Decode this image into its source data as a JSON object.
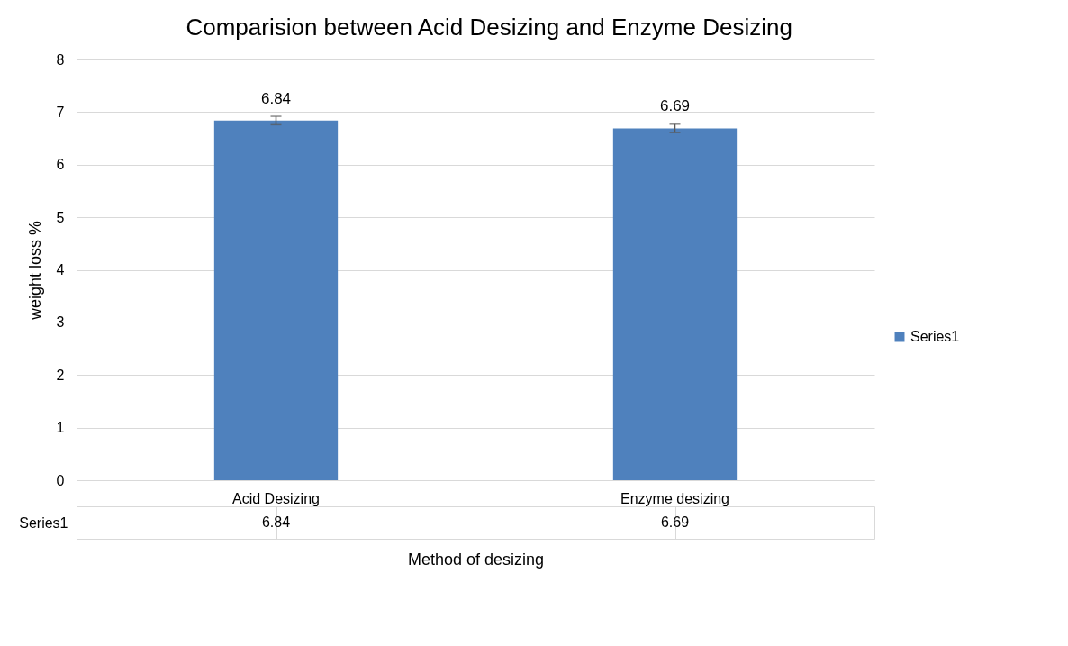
{
  "chart_data": {
    "type": "bar",
    "title": "Comparision between Acid Desizing and Enzyme Desizing",
    "xlabel": "Method of desizing",
    "ylabel": "weight loss %",
    "categories": [
      "Acid Desizing",
      "Enzyme desizing"
    ],
    "series": [
      {
        "name": "Series1",
        "color": "#4f81bd",
        "values": [
          6.84,
          6.69
        ],
        "value_labels": [
          "6.84",
          "6.69"
        ],
        "errors": [
          0.08,
          0.08
        ]
      }
    ],
    "ylim": [
      0,
      8
    ],
    "yticks": [
      0,
      1,
      2,
      3,
      4,
      5,
      6,
      7,
      8
    ],
    "grid": "y",
    "legend": "right",
    "data_labels": true
  }
}
